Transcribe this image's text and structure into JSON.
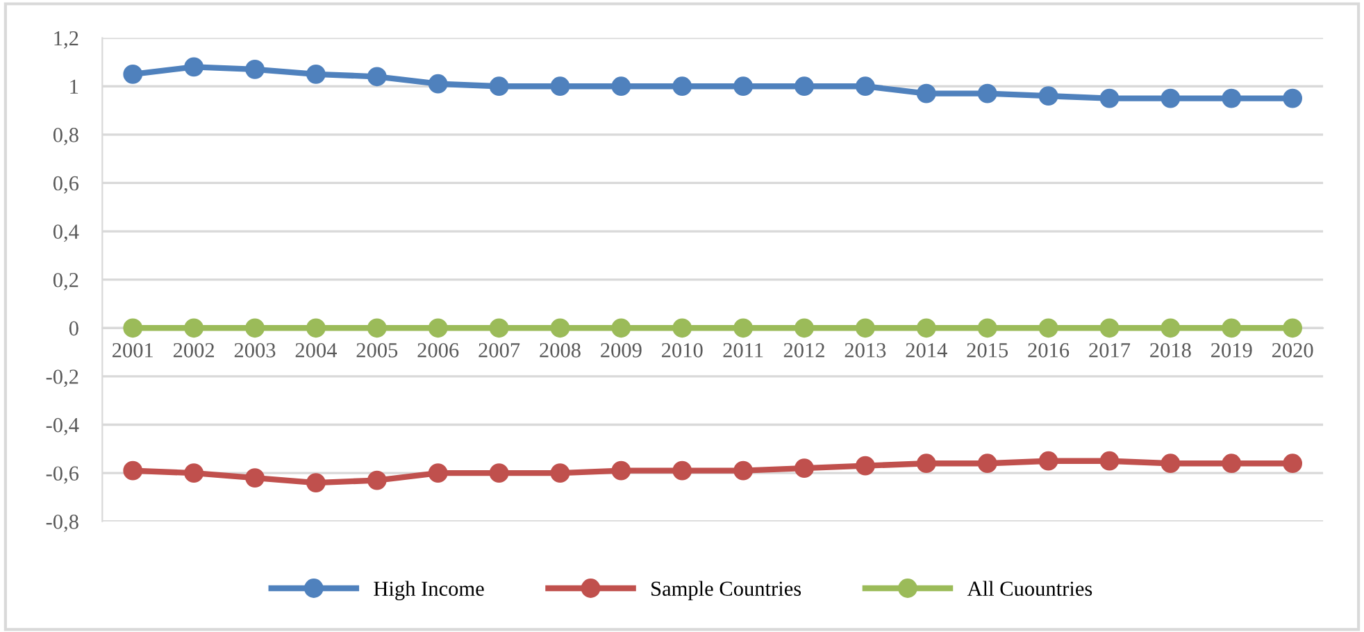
{
  "chart_data": {
    "type": "line",
    "categories": [
      "2001",
      "2002",
      "2003",
      "2004",
      "2005",
      "2006",
      "2007",
      "2008",
      "2009",
      "2010",
      "2011",
      "2012",
      "2013",
      "2014",
      "2015",
      "2016",
      "2017",
      "2018",
      "2019",
      "2020"
    ],
    "series": [
      {
        "name": "High Income",
        "color": "#4f81bd",
        "values": [
          1.05,
          1.08,
          1.07,
          1.05,
          1.04,
          1.01,
          1.0,
          1.0,
          1.0,
          1.0,
          1.0,
          1.0,
          1.0,
          0.97,
          0.97,
          0.96,
          0.95,
          0.95,
          0.95,
          0.95
        ]
      },
      {
        "name": "Sample Countries",
        "color": "#c0504d",
        "values": [
          -0.59,
          -0.6,
          -0.62,
          -0.64,
          -0.63,
          -0.6,
          -0.6,
          -0.6,
          -0.59,
          -0.59,
          -0.59,
          -0.58,
          -0.57,
          -0.56,
          -0.56,
          -0.55,
          -0.55,
          -0.56,
          -0.56,
          -0.56
        ]
      },
      {
        "name": "All Cuountries",
        "color": "#9bbb59",
        "values": [
          0,
          0,
          0,
          0,
          0,
          0,
          0,
          0,
          0,
          0,
          0,
          0,
          0,
          0,
          0,
          0,
          0,
          0,
          0,
          0
        ]
      }
    ],
    "ylim": [
      -0.8,
      1.2
    ],
    "yticks": [
      {
        "value": -0.8,
        "label": "-0,8"
      },
      {
        "value": -0.6,
        "label": "-0,6"
      },
      {
        "value": -0.4,
        "label": "-0,4"
      },
      {
        "value": -0.2,
        "label": "-0,2"
      },
      0,
      {
        "value": 0.2,
        "label": "0,2"
      },
      {
        "value": 0.4,
        "label": "0,4"
      },
      {
        "value": 0.6,
        "label": "0,6"
      },
      {
        "value": 0.8,
        "label": "0,8"
      },
      1,
      {
        "value": 1.2,
        "label": "1,2"
      }
    ],
    "grid": "y",
    "legend": "bottom",
    "marker": "circle",
    "line_style": "solid"
  }
}
